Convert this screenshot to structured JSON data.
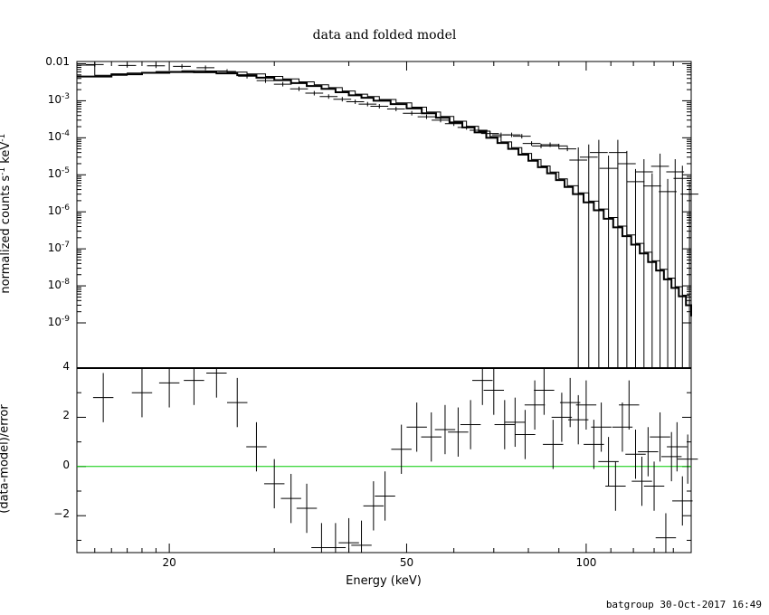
{
  "title": "data and folded model",
  "footer": "batgroup 30-Oct-2017 16:49",
  "chart_data": [
    {
      "type": "line",
      "panel": "top",
      "ylabel_parts": {
        "a": "normalized counts s",
        "b": "-1",
        "c": " keV",
        "d": "-1"
      },
      "yscale": "log",
      "xscale": "log",
      "xlim": [
        14,
        150
      ],
      "ylim": [
        6e-11,
        0.0115
      ],
      "ytick_labels": [
        {
          "v": 0.01,
          "t": "0.01"
        },
        {
          "v": 0.001,
          "t": "10",
          "e": "-3"
        },
        {
          "v": 0.0001,
          "t": "10",
          "e": "-4"
        },
        {
          "v": 1e-05,
          "t": "10",
          "e": "-5"
        },
        {
          "v": 1e-06,
          "t": "10",
          "e": "-6"
        },
        {
          "v": 1e-07,
          "t": "10",
          "e": "-7"
        },
        {
          "v": 1e-08,
          "t": "10",
          "e": "-8"
        },
        {
          "v": 1e-09,
          "t": "10",
          "e": "-9"
        }
      ],
      "series": [
        {
          "style": "crosses",
          "color": "#000000",
          "points": [
            {
              "x": 15,
              "y": 0.0095
            },
            {
              "x": 17,
              "y": 0.009
            },
            {
              "x": 19,
              "y": 0.0088
            },
            {
              "x": 21,
              "y": 0.0085
            },
            {
              "x": 23,
              "y": 0.0078
            },
            {
              "x": 25,
              "y": 0.0062
            },
            {
              "x": 27,
              "y": 0.0046
            },
            {
              "x": 29,
              "y": 0.0035
            },
            {
              "x": 31,
              "y": 0.0028
            },
            {
              "x": 33,
              "y": 0.0021
            },
            {
              "x": 35,
              "y": 0.0016
            },
            {
              "x": 37,
              "y": 0.0013
            },
            {
              "x": 39,
              "y": 0.0011
            },
            {
              "x": 41,
              "y": 0.00094
            },
            {
              "x": 43,
              "y": 0.00081
            },
            {
              "x": 45,
              "y": 0.00071
            },
            {
              "x": 48,
              "y": 0.0006
            },
            {
              "x": 51,
              "y": 0.00046
            },
            {
              "x": 54,
              "y": 0.00037
            },
            {
              "x": 57,
              "y": 0.0003
            },
            {
              "x": 60,
              "y": 0.00024
            },
            {
              "x": 63,
              "y": 0.00019
            },
            {
              "x": 66,
              "y": 0.00016
            },
            {
              "x": 69,
              "y": 0.00013
            },
            {
              "x": 72,
              "y": 0.00012
            },
            {
              "x": 75,
              "y": 0.00012
            },
            {
              "x": 78,
              "y": 0.00011
            },
            {
              "x": 81,
              "y": 7e-05
            },
            {
              "x": 84,
              "y": 6e-05
            },
            {
              "x": 87,
              "y": 6.5e-05
            },
            {
              "x": 90,
              "y": 6e-05
            },
            {
              "x": 93,
              "y": 5e-05
            },
            {
              "x": 97,
              "y": 2.5e-05
            },
            {
              "x": 101,
              "y": 3e-05
            },
            {
              "x": 105,
              "y": 4e-05
            },
            {
              "x": 109,
              "y": 1.5e-05
            },
            {
              "x": 113,
              "y": 4e-05
            },
            {
              "x": 117,
              "y": 2e-05
            },
            {
              "x": 121,
              "y": 6.5e-06
            },
            {
              "x": 125,
              "y": 1.2e-05
            },
            {
              "x": 129,
              "y": 5e-06
            },
            {
              "x": 133,
              "y": 1.7e-05
            },
            {
              "x": 137,
              "y": 3.5e-06
            },
            {
              "x": 141,
              "y": 1.2e-05
            },
            {
              "x": 145,
              "y": 8e-06
            },
            {
              "x": 149,
              "y": 3e-06
            }
          ]
        },
        {
          "style": "step",
          "color": "#000000",
          "points": [
            {
              "x": 14,
              "y": 0.0045
            },
            {
              "x": 16,
              "y": 0.0052
            },
            {
              "x": 18,
              "y": 0.0057
            },
            {
              "x": 20,
              "y": 0.006
            },
            {
              "x": 22,
              "y": 0.0059
            },
            {
              "x": 24,
              "y": 0.0055
            },
            {
              "x": 26,
              "y": 0.0049
            },
            {
              "x": 28,
              "y": 0.0042
            },
            {
              "x": 30,
              "y": 0.0036
            },
            {
              "x": 32,
              "y": 0.003
            },
            {
              "x": 34,
              "y": 0.0025
            },
            {
              "x": 36,
              "y": 0.0021
            },
            {
              "x": 38,
              "y": 0.0017
            },
            {
              "x": 40,
              "y": 0.0014
            },
            {
              "x": 42,
              "y": 0.0012
            },
            {
              "x": 44,
              "y": 0.001
            },
            {
              "x": 47,
              "y": 0.00081
            },
            {
              "x": 50,
              "y": 0.00062
            },
            {
              "x": 53,
              "y": 0.00046
            },
            {
              "x": 56,
              "y": 0.00035
            },
            {
              "x": 59,
              "y": 0.00026
            },
            {
              "x": 62,
              "y": 0.00019
            },
            {
              "x": 65,
              "y": 0.00014
            },
            {
              "x": 68,
              "y": 0.0001
            },
            {
              "x": 71,
              "y": 7.2e-05
            },
            {
              "x": 74,
              "y": 5e-05
            },
            {
              "x": 77,
              "y": 3.5e-05
            },
            {
              "x": 80,
              "y": 2.4e-05
            },
            {
              "x": 83,
              "y": 1.6e-05
            },
            {
              "x": 86,
              "y": 1.1e-05
            },
            {
              "x": 89,
              "y": 7.2e-06
            },
            {
              "x": 92,
              "y": 4.7e-06
            },
            {
              "x": 95,
              "y": 3e-06
            },
            {
              "x": 99,
              "y": 1.8e-06
            },
            {
              "x": 103,
              "y": 1.1e-06
            },
            {
              "x": 107,
              "y": 6.5e-07
            },
            {
              "x": 111,
              "y": 3.8e-07
            },
            {
              "x": 115,
              "y": 2.2e-07
            },
            {
              "x": 119,
              "y": 1.3e-07
            },
            {
              "x": 123,
              "y": 7.5e-08
            },
            {
              "x": 127,
              "y": 4.4e-08
            },
            {
              "x": 131,
              "y": 2.6e-08
            },
            {
              "x": 135,
              "y": 1.5e-08
            },
            {
              "x": 139,
              "y": 8.8e-09
            },
            {
              "x": 143,
              "y": 5.2e-09
            },
            {
              "x": 147,
              "y": 3e-09
            },
            {
              "x": 150,
              "y": 1.5e-09
            }
          ]
        }
      ]
    },
    {
      "type": "scatter",
      "panel": "bottom",
      "ylabel": "(data-model)/error",
      "xlabel": "Energy (keV)",
      "xscale": "log",
      "xlim": [
        14,
        150
      ],
      "ylim": [
        -3.5,
        4
      ],
      "xtick_labels": [
        {
          "v": 20,
          "t": "20"
        },
        {
          "v": 50,
          "t": "50"
        },
        {
          "v": 100,
          "t": "100"
        }
      ],
      "ytick_labels": [
        {
          "v": 4,
          "t": "4"
        },
        {
          "v": 2,
          "t": "2"
        },
        {
          "v": 0,
          "t": "0"
        },
        {
          "v": -2,
          "t": "−2"
        }
      ],
      "zero_line_color": "#00cc00",
      "series": [
        {
          "style": "crosses",
          "color": "#000000",
          "points": [
            {
              "x": 15.5,
              "y": 2.8
            },
            {
              "x": 18,
              "y": 3.0
            },
            {
              "x": 20,
              "y": 3.4
            },
            {
              "x": 22,
              "y": 3.5
            },
            {
              "x": 24,
              "y": 3.8
            },
            {
              "x": 26,
              "y": 2.6
            },
            {
              "x": 28,
              "y": 0.8
            },
            {
              "x": 30,
              "y": -0.7
            },
            {
              "x": 32,
              "y": -1.3
            },
            {
              "x": 34,
              "y": -1.7
            },
            {
              "x": 36,
              "y": -3.3
            },
            {
              "x": 38,
              "y": -3.3
            },
            {
              "x": 40,
              "y": -3.1
            },
            {
              "x": 42,
              "y": -3.2
            },
            {
              "x": 44,
              "y": -1.6
            },
            {
              "x": 46,
              "y": -1.2
            },
            {
              "x": 49,
              "y": 0.7
            },
            {
              "x": 52,
              "y": 1.6
            },
            {
              "x": 55,
              "y": 1.2
            },
            {
              "x": 58,
              "y": 1.5
            },
            {
              "x": 61,
              "y": 1.4
            },
            {
              "x": 64,
              "y": 1.7
            },
            {
              "x": 67,
              "y": 3.5
            },
            {
              "x": 70,
              "y": 3.1
            },
            {
              "x": 73,
              "y": 1.7
            },
            {
              "x": 76,
              "y": 1.8
            },
            {
              "x": 79,
              "y": 1.3
            },
            {
              "x": 82,
              "y": 2.5
            },
            {
              "x": 85,
              "y": 3.1
            },
            {
              "x": 88,
              "y": 0.9
            },
            {
              "x": 91,
              "y": 2.0
            },
            {
              "x": 94,
              "y": 2.6
            },
            {
              "x": 97,
              "y": 1.9
            },
            {
              "x": 100,
              "y": 2.5
            },
            {
              "x": 103,
              "y": 0.9
            },
            {
              "x": 106,
              "y": 1.6
            },
            {
              "x": 109,
              "y": 0.2
            },
            {
              "x": 112,
              "y": -0.8
            },
            {
              "x": 115,
              "y": 1.6
            },
            {
              "x": 118,
              "y": 2.5
            },
            {
              "x": 121,
              "y": 0.5
            },
            {
              "x": 124,
              "y": -0.6
            },
            {
              "x": 127,
              "y": 0.6
            },
            {
              "x": 130,
              "y": -0.8
            },
            {
              "x": 133,
              "y": 1.2
            },
            {
              "x": 136,
              "y": -2.9
            },
            {
              "x": 139,
              "y": 0.4
            },
            {
              "x": 142,
              "y": 0.8
            },
            {
              "x": 145,
              "y": -1.4
            },
            {
              "x": 148,
              "y": 0.3
            }
          ]
        }
      ]
    }
  ]
}
